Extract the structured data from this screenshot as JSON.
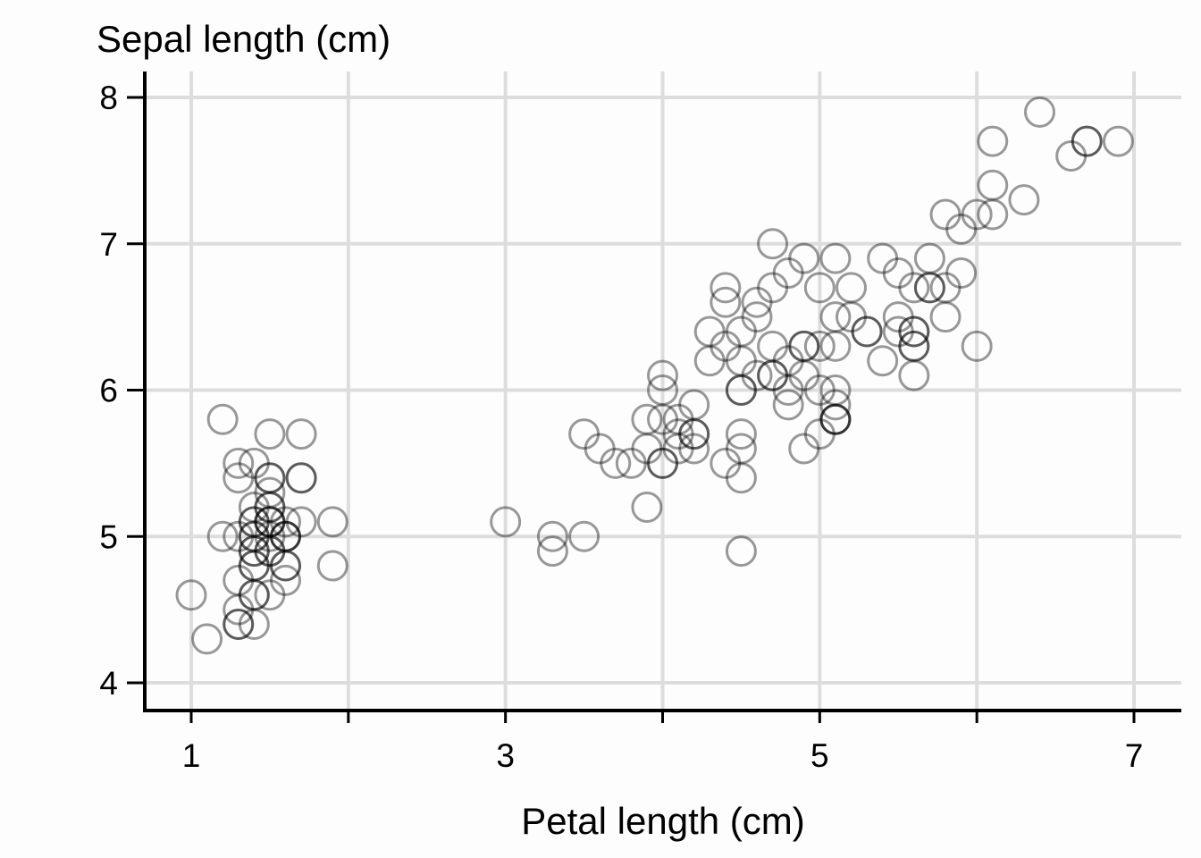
{
  "chart_data": {
    "type": "scatter",
    "title": "",
    "xlabel": "Petal length (cm)",
    "ylabel": "Sepal length (cm)",
    "xlim": [
      0.7,
      7.3
    ],
    "ylim": [
      3.9,
      8.2
    ],
    "xticks": [
      1,
      3,
      5,
      7
    ],
    "xticks_minor": [
      2,
      4,
      6
    ],
    "yticks": [
      4,
      5,
      6,
      7,
      8
    ],
    "grid": true,
    "marker": "hollow-circle",
    "marker_color": "#000000",
    "marker_opacity": 0.4,
    "points": [
      [
        1.4,
        5.1
      ],
      [
        1.4,
        4.9
      ],
      [
        1.3,
        4.7
      ],
      [
        1.5,
        4.6
      ],
      [
        1.4,
        5.0
      ],
      [
        1.7,
        5.4
      ],
      [
        1.4,
        4.6
      ],
      [
        1.5,
        5.0
      ],
      [
        1.4,
        4.4
      ],
      [
        1.5,
        4.9
      ],
      [
        1.5,
        5.4
      ],
      [
        1.6,
        4.8
      ],
      [
        1.4,
        4.8
      ],
      [
        1.1,
        4.3
      ],
      [
        1.2,
        5.8
      ],
      [
        1.5,
        5.7
      ],
      [
        1.3,
        5.4
      ],
      [
        1.4,
        5.1
      ],
      [
        1.7,
        5.7
      ],
      [
        1.5,
        5.1
      ],
      [
        1.7,
        5.4
      ],
      [
        1.5,
        5.1
      ],
      [
        1.0,
        4.6
      ],
      [
        1.7,
        5.1
      ],
      [
        1.9,
        4.8
      ],
      [
        1.6,
        5.0
      ],
      [
        1.6,
        5.0
      ],
      [
        1.5,
        5.2
      ],
      [
        1.4,
        5.2
      ],
      [
        1.6,
        4.7
      ],
      [
        1.6,
        4.8
      ],
      [
        1.5,
        5.4
      ],
      [
        1.5,
        5.2
      ],
      [
        1.4,
        5.5
      ],
      [
        1.5,
        4.9
      ],
      [
        1.2,
        5.0
      ],
      [
        1.3,
        5.5
      ],
      [
        1.4,
        4.9
      ],
      [
        1.3,
        4.4
      ],
      [
        1.5,
        5.1
      ],
      [
        1.3,
        5.0
      ],
      [
        1.3,
        4.5
      ],
      [
        1.3,
        4.4
      ],
      [
        1.6,
        5.0
      ],
      [
        1.9,
        5.1
      ],
      [
        1.4,
        4.8
      ],
      [
        1.6,
        5.1
      ],
      [
        1.4,
        4.6
      ],
      [
        1.5,
        5.3
      ],
      [
        1.4,
        5.0
      ],
      [
        4.7,
        7.0
      ],
      [
        4.5,
        6.4
      ],
      [
        4.9,
        6.9
      ],
      [
        4.0,
        5.5
      ],
      [
        4.6,
        6.5
      ],
      [
        4.5,
        5.7
      ],
      [
        4.7,
        6.3
      ],
      [
        3.3,
        4.9
      ],
      [
        4.6,
        6.6
      ],
      [
        3.9,
        5.2
      ],
      [
        3.5,
        5.0
      ],
      [
        4.2,
        5.9
      ],
      [
        4.0,
        6.0
      ],
      [
        4.7,
        6.1
      ],
      [
        3.6,
        5.6
      ],
      [
        4.4,
        6.7
      ],
      [
        4.5,
        5.6
      ],
      [
        4.1,
        5.8
      ],
      [
        4.5,
        6.2
      ],
      [
        3.9,
        5.6
      ],
      [
        4.8,
        5.9
      ],
      [
        4.0,
        6.1
      ],
      [
        4.9,
        6.3
      ],
      [
        4.7,
        6.1
      ],
      [
        4.3,
        6.4
      ],
      [
        4.4,
        6.6
      ],
      [
        4.8,
        6.8
      ],
      [
        5.0,
        6.7
      ],
      [
        4.5,
        6.0
      ],
      [
        3.5,
        5.7
      ],
      [
        3.8,
        5.5
      ],
      [
        3.7,
        5.5
      ],
      [
        3.9,
        5.8
      ],
      [
        5.1,
        6.0
      ],
      [
        4.5,
        5.4
      ],
      [
        4.5,
        6.0
      ],
      [
        4.7,
        6.7
      ],
      [
        4.4,
        6.3
      ],
      [
        4.1,
        5.6
      ],
      [
        4.0,
        5.5
      ],
      [
        4.4,
        5.5
      ],
      [
        4.6,
        6.1
      ],
      [
        4.0,
        5.8
      ],
      [
        3.3,
        5.0
      ],
      [
        4.2,
        5.6
      ],
      [
        4.2,
        5.7
      ],
      [
        4.2,
        5.7
      ],
      [
        4.3,
        6.2
      ],
      [
        3.0,
        5.1
      ],
      [
        4.1,
        5.7
      ],
      [
        6.0,
        6.3
      ],
      [
        5.1,
        5.8
      ],
      [
        5.9,
        7.1
      ],
      [
        5.6,
        6.3
      ],
      [
        5.8,
        6.5
      ],
      [
        6.6,
        7.6
      ],
      [
        4.5,
        4.9
      ],
      [
        6.3,
        7.3
      ],
      [
        5.8,
        6.7
      ],
      [
        6.1,
        7.2
      ],
      [
        5.1,
        6.5
      ],
      [
        5.3,
        6.4
      ],
      [
        5.5,
        6.8
      ],
      [
        5.0,
        5.7
      ],
      [
        5.1,
        5.8
      ],
      [
        5.3,
        6.4
      ],
      [
        5.5,
        6.5
      ],
      [
        6.7,
        7.7
      ],
      [
        6.9,
        7.7
      ],
      [
        5.0,
        6.0
      ],
      [
        5.7,
        6.9
      ],
      [
        4.9,
        5.6
      ],
      [
        6.7,
        7.7
      ],
      [
        4.9,
        6.3
      ],
      [
        5.7,
        6.7
      ],
      [
        6.0,
        7.2
      ],
      [
        4.8,
        6.2
      ],
      [
        4.9,
        6.1
      ],
      [
        5.6,
        6.4
      ],
      [
        5.8,
        7.2
      ],
      [
        6.1,
        7.4
      ],
      [
        6.4,
        7.9
      ],
      [
        5.6,
        6.4
      ],
      [
        5.1,
        6.3
      ],
      [
        5.6,
        6.1
      ],
      [
        6.1,
        7.7
      ],
      [
        5.6,
        6.3
      ],
      [
        5.5,
        6.4
      ],
      [
        4.8,
        6.0
      ],
      [
        5.4,
        6.9
      ],
      [
        5.6,
        6.7
      ],
      [
        5.1,
        6.9
      ],
      [
        5.1,
        5.8
      ],
      [
        5.9,
        6.8
      ],
      [
        5.7,
        6.7
      ],
      [
        5.2,
        6.7
      ],
      [
        5.0,
        6.3
      ],
      [
        5.2,
        6.5
      ],
      [
        5.4,
        6.2
      ],
      [
        5.1,
        5.9
      ]
    ]
  }
}
